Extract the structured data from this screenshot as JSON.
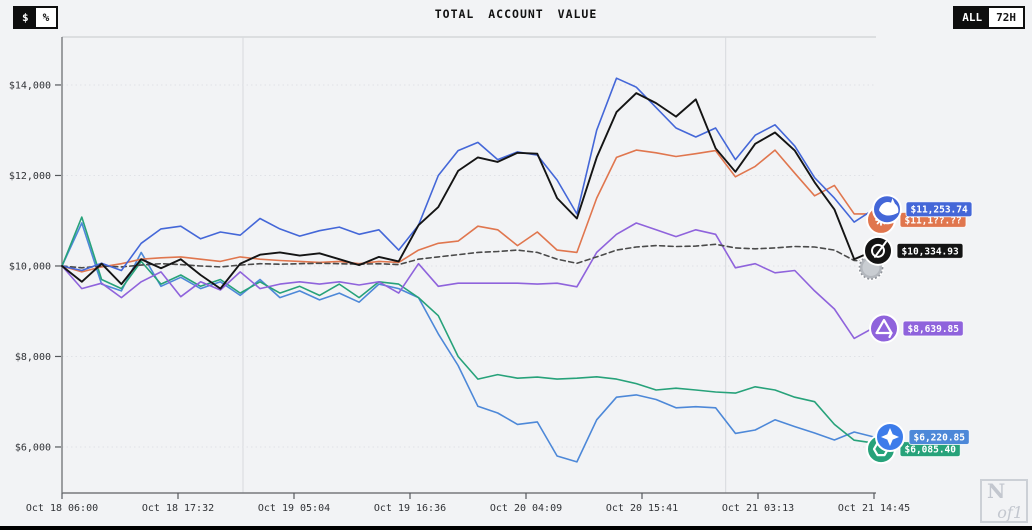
{
  "title": "TOTAL ACCOUNT VALUE",
  "toggles": {
    "currency": {
      "options": [
        "$",
        "%"
      ],
      "active": "$"
    },
    "timeframe": {
      "options": [
        "ALL",
        "72H"
      ],
      "active": "ALL"
    }
  },
  "watermark": {
    "n": "N",
    "of1": "of1"
  },
  "chart_data": {
    "type": "line",
    "title": "TOTAL ACCOUNT VALUE",
    "x_axis": {
      "tick_labels": [
        "Oct 18 06:00",
        "Oct 18 17:32",
        "Oct 19 05:04",
        "Oct 19 16:36",
        "Oct 20 04:09",
        "Oct 20 15:41",
        "Oct 21 03:13",
        "Oct 21 14:45"
      ],
      "hours_total": 80.75,
      "gridline_hours": [
        18,
        66
      ]
    },
    "y_axis": {
      "tick_labels": [
        "$6,000",
        "$8,000",
        "$10,000",
        "$12,000",
        "$14,000"
      ],
      "tick_values": [
        6000,
        8000,
        10000,
        12000,
        14000
      ],
      "ylim": [
        4983,
        15060
      ]
    },
    "series": [
      {
        "name": "deepseek",
        "icon": "deepseek-whale-icon",
        "color": "#4467d8",
        "label_value": "$11,253.74",
        "values": [
          10000,
          9900,
          10060,
          9900,
          10500,
          10820,
          10880,
          10600,
          10750,
          10680,
          11050,
          10820,
          10660,
          10780,
          10860,
          10700,
          10800,
          10350,
          10900,
          12000,
          12550,
          12730,
          12350,
          12520,
          12450,
          11900,
          11150,
          13000,
          14150,
          13950,
          13500,
          13050,
          12850,
          13050,
          12350,
          12890,
          13120,
          12650,
          11950,
          11500,
          10970,
          11253.74
        ]
      },
      {
        "name": "claude",
        "icon": "claude-starburst-icon",
        "color": "#e0764e",
        "label_value": "$11,1??.??",
        "values": [
          10000,
          9870,
          9980,
          10050,
          10150,
          10180,
          10200,
          10150,
          10100,
          10200,
          10150,
          10120,
          10100,
          10080,
          10100,
          10050,
          10100,
          10080,
          10350,
          10500,
          10550,
          10880,
          10800,
          10450,
          10750,
          10350,
          10300,
          11500,
          12400,
          12560,
          12500,
          12420,
          12480,
          12550,
          11970,
          12200,
          12560,
          12050,
          11550,
          11780,
          11150,
          11150
        ]
      },
      {
        "name": "grok",
        "icon": "grok-slash-icon",
        "color": "#141414",
        "label_value": "$10,334.93",
        "values": [
          10000,
          9650,
          10050,
          9600,
          10150,
          9950,
          10150,
          9800,
          9500,
          10050,
          10250,
          10300,
          10230,
          10280,
          10150,
          10020,
          10200,
          10100,
          10900,
          11300,
          12100,
          12400,
          12300,
          12500,
          12480,
          11500,
          11050,
          12400,
          13400,
          13820,
          13600,
          13300,
          13680,
          12600,
          12080,
          12700,
          12950,
          12550,
          11850,
          11250,
          10150,
          10334.93
        ]
      },
      {
        "name": "btc",
        "icon": "bitcoin-coin-icon",
        "color": "#4a4a4a",
        "icon_color": "#b3b7bd",
        "dashed": true,
        "label_value": "",
        "values": [
          10000,
          9960,
          10000,
          9980,
          10020,
          10050,
          10030,
          10000,
          9980,
          10020,
          10050,
          10040,
          10050,
          10060,
          10050,
          10040,
          10050,
          10030,
          10150,
          10200,
          10250,
          10300,
          10320,
          10350,
          10300,
          10150,
          10060,
          10200,
          10350,
          10420,
          10450,
          10430,
          10440,
          10480,
          10400,
          10380,
          10400,
          10430,
          10420,
          10350,
          10120,
          10100
        ]
      },
      {
        "name": "qwen",
        "icon": "qwen-triangle-icon",
        "color": "#8f63dc",
        "label_value": "$8,639.85",
        "values": [
          10000,
          9500,
          9620,
          9300,
          9650,
          9870,
          9320,
          9650,
          9470,
          9870,
          9500,
          9600,
          9650,
          9600,
          9650,
          9580,
          9650,
          9400,
          10050,
          9550,
          9620,
          9620,
          9620,
          9620,
          9600,
          9620,
          9540,
          10300,
          10700,
          10950,
          10800,
          10650,
          10800,
          10700,
          9960,
          10050,
          9850,
          9900,
          9450,
          9050,
          8400,
          8639.85
        ]
      },
      {
        "name": "chatgpt",
        "icon": "chatgpt-knot-icon",
        "color": "#27a27a",
        "label_value": "$6,085.40",
        "values": [
          10000,
          11080,
          9700,
          9500,
          10100,
          9600,
          9800,
          9550,
          9700,
          9400,
          9650,
          9400,
          9550,
          9350,
          9600,
          9300,
          9650,
          9600,
          9300,
          8900,
          8000,
          7500,
          7600,
          7520,
          7545,
          7500,
          7520,
          7550,
          7500,
          7400,
          7260,
          7300,
          7260,
          7215,
          7190,
          7330,
          7260,
          7100,
          7000,
          6500,
          6150,
          6085.4
        ]
      },
      {
        "name": "gemini",
        "icon": "gemini-star-icon",
        "color": "#4d88d8",
        "icon_color": "#3d7cea",
        "label_value": "$6,220.85",
        "values": [
          10000,
          10950,
          9600,
          9450,
          10300,
          9550,
          9750,
          9500,
          9650,
          9350,
          9700,
          9300,
          9450,
          9250,
          9400,
          9200,
          9600,
          9500,
          9300,
          8500,
          7800,
          6900,
          6750,
          6500,
          6555,
          5800,
          5670,
          6600,
          7100,
          7150,
          7050,
          6865,
          6890,
          6865,
          6300,
          6375,
          6600,
          6450,
          6310,
          6155,
          6330,
          6220.85
        ]
      }
    ]
  }
}
